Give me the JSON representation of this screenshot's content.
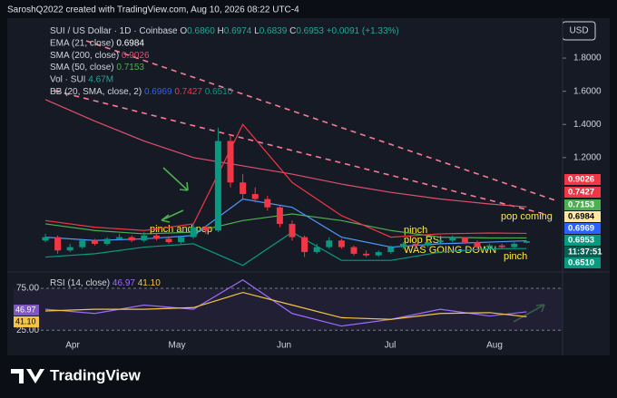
{
  "header": "SaroshQ2022 created with TradingView.com, Aug 10, 2026 08:22 UTC-4",
  "currency_button": "USD",
  "legend": [
    [
      {
        "text": "SUI / US Dollar · 1D · Coinbase ",
        "color": "#d1d4dc"
      },
      {
        "text": "O",
        "color": "#d1d4dc"
      },
      {
        "text": "0.6860 ",
        "color": "#26a69a"
      },
      {
        "text": "H",
        "color": "#d1d4dc"
      },
      {
        "text": "0.6974 ",
        "color": "#26a69a"
      },
      {
        "text": "L",
        "color": "#d1d4dc"
      },
      {
        "text": "0.6839 ",
        "color": "#26a69a"
      },
      {
        "text": "C",
        "color": "#d1d4dc"
      },
      {
        "text": "0.6953 +0.0091 (+1.33%)",
        "color": "#26a69a"
      }
    ],
    [
      {
        "text": "EMA (21, close) ",
        "color": "#d1d4dc"
      },
      {
        "text": "0.6984",
        "color": "#ffffff"
      }
    ],
    [
      {
        "text": "SMA (200, close) ",
        "color": "#d1d4dc"
      },
      {
        "text": "0.9026",
        "color": "#e0506e"
      }
    ],
    [
      {
        "text": "SMA (50, close) ",
        "color": "#d1d4dc"
      },
      {
        "text": "0.7153",
        "color": "#4caf50"
      }
    ],
    [
      {
        "text": "Vol · SUI ",
        "color": "#d1d4dc"
      },
      {
        "text": "4.67M",
        "color": "#26a69a"
      }
    ],
    [
      {
        "text": "BB (20, SMA, close, 2) ",
        "color": "#d1d4dc"
      },
      {
        "text": "0.6969 ",
        "color": "#2962ff"
      },
      {
        "text": "0.7427 ",
        "color": "#f23645"
      },
      {
        "text": "0.6510",
        "color": "#089981"
      }
    ]
  ],
  "chart_data": [
    {
      "type": "candlestick",
      "ylim": [
        0.51,
        2.03
      ],
      "yticks": [
        {
          "value": 1.8,
          "label": "1.8000"
        },
        {
          "value": 1.6,
          "label": "1.6000"
        },
        {
          "value": 1.4,
          "label": "1.4000"
        },
        {
          "value": 1.2,
          "label": "1.2000"
        }
      ],
      "x_labels": [
        "Apr",
        "May",
        "Jun",
        "Jul",
        "Aug"
      ],
      "up_color": "#089981",
      "down_color": "#f23645",
      "candles": [
        [
          0.7,
          0.74,
          0.69,
          0.72
        ],
        [
          0.72,
          0.73,
          0.62,
          0.64
        ],
        [
          0.64,
          0.68,
          0.63,
          0.66
        ],
        [
          0.66,
          0.71,
          0.65,
          0.7
        ],
        [
          0.7,
          0.71,
          0.67,
          0.68
        ],
        [
          0.68,
          0.72,
          0.67,
          0.71
        ],
        [
          0.71,
          0.74,
          0.7,
          0.72
        ],
        [
          0.72,
          0.73,
          0.69,
          0.7
        ],
        [
          0.7,
          0.75,
          0.69,
          0.73
        ],
        [
          0.73,
          0.74,
          0.7,
          0.71
        ],
        [
          0.71,
          0.72,
          0.68,
          0.69
        ],
        [
          0.69,
          0.73,
          0.68,
          0.72
        ],
        [
          0.72,
          0.8,
          0.71,
          0.78
        ],
        [
          0.78,
          0.79,
          0.74,
          0.76
        ],
        [
          0.76,
          1.38,
          0.75,
          1.3
        ],
        [
          1.3,
          1.33,
          1.02,
          1.05
        ],
        [
          1.05,
          1.1,
          0.95,
          0.98
        ],
        [
          0.98,
          1.02,
          0.93,
          0.95
        ],
        [
          0.95,
          0.97,
          0.88,
          0.9
        ],
        [
          0.9,
          0.91,
          0.78,
          0.8
        ],
        [
          0.8,
          0.82,
          0.7,
          0.72
        ],
        [
          0.72,
          0.73,
          0.6,
          0.63
        ],
        [
          0.63,
          0.68,
          0.62,
          0.66
        ],
        [
          0.66,
          0.72,
          0.65,
          0.7
        ],
        [
          0.7,
          0.71,
          0.65,
          0.66
        ],
        [
          0.66,
          0.67,
          0.61,
          0.62
        ],
        [
          0.62,
          0.64,
          0.6,
          0.61
        ],
        [
          0.61,
          0.64,
          0.6,
          0.63
        ],
        [
          0.63,
          0.67,
          0.62,
          0.66
        ],
        [
          0.66,
          0.69,
          0.65,
          0.68
        ],
        [
          0.68,
          0.69,
          0.66,
          0.67
        ],
        [
          0.67,
          0.7,
          0.66,
          0.69
        ],
        [
          0.69,
          0.71,
          0.68,
          0.7
        ],
        [
          0.7,
          0.73,
          0.69,
          0.72
        ],
        [
          0.72,
          0.72,
          0.68,
          0.69
        ],
        [
          0.69,
          0.7,
          0.65,
          0.66
        ],
        [
          0.66,
          0.68,
          0.65,
          0.67
        ],
        [
          0.67,
          0.68,
          0.65,
          0.66
        ],
        [
          0.66,
          0.69,
          0.65,
          0.68
        ],
        [
          0.686,
          0.6974,
          0.6839,
          0.6953
        ]
      ],
      "line_index": [
        0,
        4,
        8,
        12,
        16,
        20,
        24,
        28,
        32,
        36,
        39
      ],
      "lines": [
        {
          "color": "#e0506e",
          "values": [
            1.55,
            1.42,
            1.3,
            1.2,
            1.15,
            1.1,
            1.04,
            0.99,
            0.95,
            0.92,
            0.9026
          ]
        },
        {
          "color": "#4caf50",
          "values": [
            0.8,
            0.76,
            0.74,
            0.75,
            0.82,
            0.86,
            0.82,
            0.76,
            0.72,
            0.715,
            0.7153
          ]
        },
        {
          "color": "#f23645",
          "values": [
            0.82,
            0.78,
            0.76,
            0.8,
            1.4,
            1.05,
            0.85,
            0.72,
            0.74,
            0.745,
            0.7427
          ]
        },
        {
          "color": "#089981",
          "values": [
            0.6,
            0.62,
            0.66,
            0.68,
            0.55,
            0.75,
            0.58,
            0.58,
            0.63,
            0.65,
            0.651
          ]
        },
        {
          "color": "#4c9aff",
          "values": [
            0.72,
            0.7,
            0.71,
            0.73,
            0.95,
            0.9,
            0.72,
            0.66,
            0.68,
            0.69,
            0.6984
          ]
        }
      ]
    },
    {
      "type": "line",
      "legend": [
        {
          "text": "RSI (14, close) ",
          "color": "#d1d4dc"
        },
        {
          "text": "46.97 ",
          "color": "#9c6bff"
        },
        {
          "text": "41.10",
          "color": "#f5c542"
        }
      ],
      "ylim": [
        21,
        89
      ],
      "yticks": [
        {
          "value": 75,
          "label": "75.00"
        },
        {
          "value": 25,
          "label": "25.00"
        }
      ],
      "line_index": [
        0,
        4,
        8,
        12,
        16,
        20,
        24,
        28,
        32,
        36,
        39
      ],
      "series": [
        {
          "color": "#9c6bff",
          "values": [
            50,
            45,
            55,
            50,
            85,
            45,
            30,
            38,
            50,
            42,
            46.97
          ]
        },
        {
          "color": "#f5c542",
          "values": [
            48,
            50,
            50,
            52,
            70,
            55,
            40,
            38,
            45,
            46,
            41.1
          ]
        }
      ],
      "badges": [
        {
          "text": "46.97",
          "color": "#7e57c2"
        },
        {
          "text": "41.10",
          "color": "#f5c542"
        }
      ]
    }
  ],
  "price_badges": [
    {
      "text": "0.9026",
      "color": "#f23645"
    },
    {
      "text": "0.7427",
      "color": "#f23645"
    },
    {
      "text": "0.7153",
      "color": "#4caf50"
    },
    {
      "text": "0.6984",
      "color": "#ffe8a3"
    },
    {
      "text": "0.6969",
      "color": "#2962ff"
    },
    {
      "text": "0.6953",
      "color": "#089981"
    },
    {
      "text": "11:37:51",
      "color": "#0b5d52"
    },
    {
      "text": "0.6510",
      "color": "#089981"
    }
  ],
  "annotations": [
    "pinch and pop",
    "pinch",
    "plop RSI",
    "WAS GOING DOWN",
    "pop coming",
    "pinch"
  ],
  "footer_logo": "TradingView"
}
